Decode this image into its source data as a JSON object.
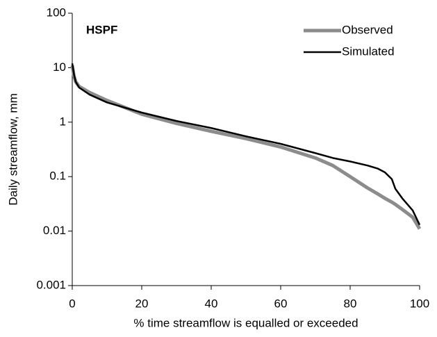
{
  "chart_data": {
    "type": "line",
    "annotation": "HSPF",
    "x_label": "% time streamflow is equalled or exceeded",
    "y_label": "Daily streamflow, mm",
    "x": [
      0,
      0.5,
      1,
      2,
      5,
      10,
      20,
      30,
      40,
      50,
      60,
      70,
      75,
      80,
      85,
      88,
      90,
      92,
      93,
      95,
      98,
      100
    ],
    "series": [
      {
        "name": "Observed",
        "color": "#8c8c8c",
        "values": [
          11,
          7,
          5.5,
          4.5,
          3.5,
          2.5,
          1.4,
          0.95,
          0.68,
          0.5,
          0.35,
          0.22,
          0.16,
          0.1,
          0.062,
          0.048,
          0.04,
          0.034,
          0.031,
          0.025,
          0.018,
          0.011
        ]
      },
      {
        "name": "Simulated",
        "color": "#000000",
        "values": [
          12,
          7.5,
          5.5,
          4.3,
          3.2,
          2.3,
          1.5,
          1.05,
          0.78,
          0.55,
          0.4,
          0.27,
          0.22,
          0.19,
          0.16,
          0.14,
          0.12,
          0.09,
          0.06,
          0.04,
          0.024,
          0.013
        ]
      }
    ],
    "xlim": [
      0,
      100
    ],
    "xticks": [
      0,
      20,
      40,
      60,
      80,
      100
    ],
    "ylim": [
      0.001,
      100
    ],
    "yticks": [
      0.001,
      0.01,
      0.1,
      1,
      10,
      100
    ],
    "log_y": true,
    "grid": false,
    "legend": "upper right"
  }
}
